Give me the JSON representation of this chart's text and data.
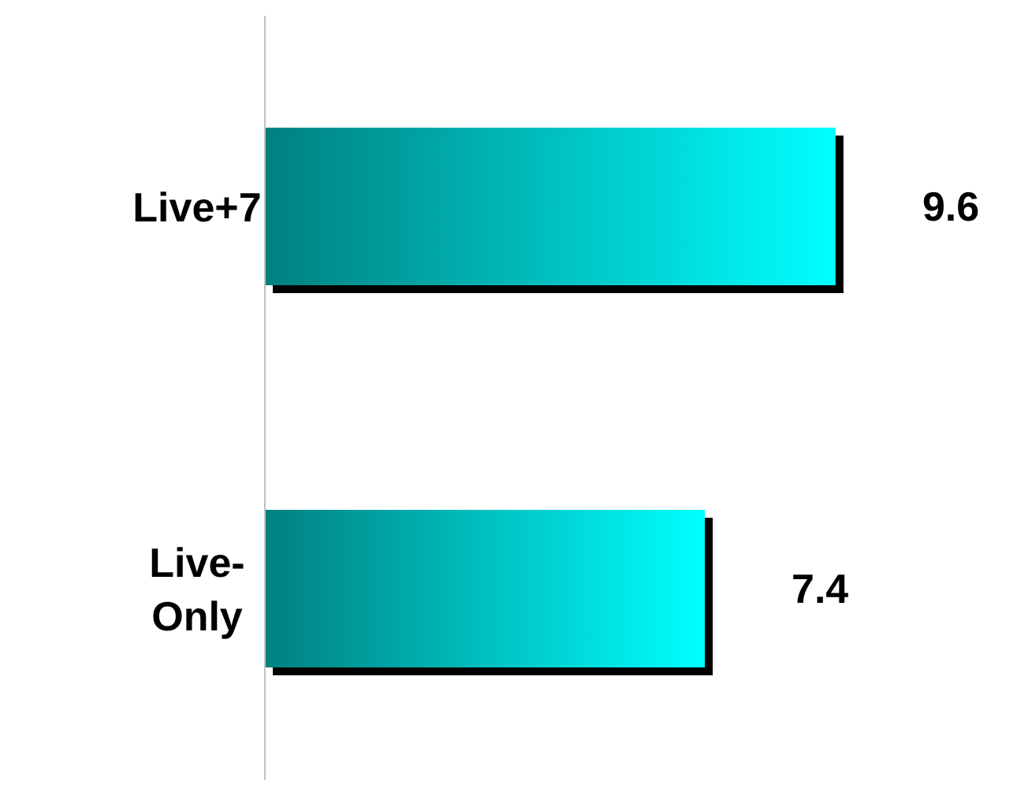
{
  "chart_data": {
    "type": "bar",
    "orientation": "horizontal",
    "categories": [
      "Live+7",
      "Live-Only"
    ],
    "values": [
      9.6,
      7.4
    ],
    "color": "#00ffff",
    "data_labels": true
  }
}
